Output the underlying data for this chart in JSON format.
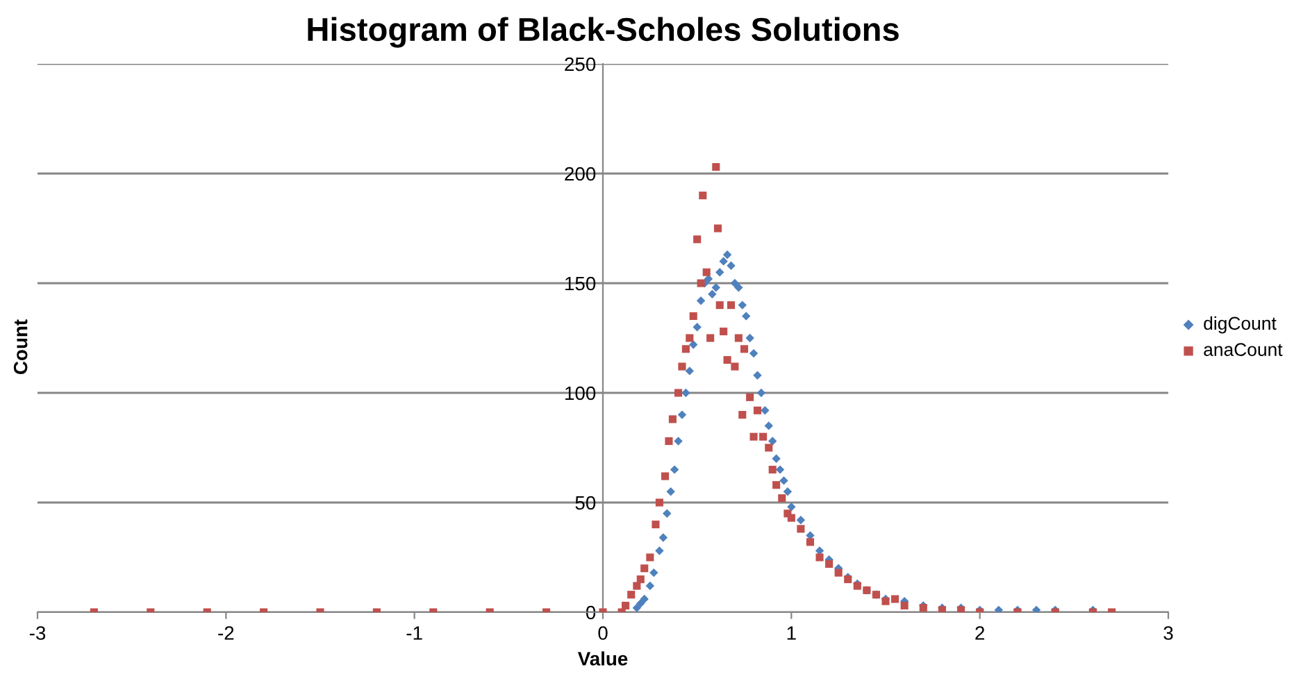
{
  "chart_data": {
    "type": "scatter",
    "title": "Histogram of Black-Scholes Solutions",
    "xlabel": "Value",
    "ylabel": "Count",
    "xlim": [
      -3,
      3
    ],
    "xticks": [
      -3,
      -2,
      -1,
      0,
      1,
      2,
      3
    ],
    "ylim": [
      0,
      250
    ],
    "yticks": [
      0,
      50,
      100,
      150,
      200,
      250
    ],
    "grid": "y",
    "legend": "right",
    "series": [
      {
        "name": "digCount",
        "color": "#4f81bd",
        "marker": "diamond",
        "x": [
          0.18,
          0.2,
          0.22,
          0.25,
          0.27,
          0.3,
          0.32,
          0.34,
          0.36,
          0.38,
          0.4,
          0.42,
          0.44,
          0.46,
          0.48,
          0.5,
          0.52,
          0.54,
          0.56,
          0.58,
          0.6,
          0.62,
          0.64,
          0.66,
          0.68,
          0.7,
          0.72,
          0.74,
          0.76,
          0.78,
          0.8,
          0.82,
          0.84,
          0.86,
          0.88,
          0.9,
          0.92,
          0.94,
          0.96,
          0.98,
          1.0,
          1.05,
          1.1,
          1.15,
          1.2,
          1.25,
          1.3,
          1.35,
          1.4,
          1.45,
          1.5,
          1.6,
          1.7,
          1.8,
          1.9,
          2.0,
          2.1,
          2.2,
          2.3,
          2.4,
          2.6
        ],
        "values": [
          2,
          4,
          6,
          12,
          18,
          28,
          34,
          45,
          55,
          65,
          78,
          90,
          100,
          110,
          122,
          130,
          142,
          150,
          152,
          145,
          148,
          155,
          160,
          163,
          158,
          150,
          148,
          140,
          135,
          125,
          118,
          108,
          100,
          92,
          85,
          78,
          70,
          65,
          60,
          55,
          48,
          42,
          35,
          28,
          24,
          20,
          16,
          13,
          10,
          8,
          6,
          5,
          3,
          2,
          2,
          1,
          1,
          1,
          1,
          1,
          1
        ]
      },
      {
        "name": "anaCount",
        "color": "#c0504d",
        "marker": "square",
        "x": [
          -2.7,
          -2.4,
          -2.1,
          -1.8,
          -1.5,
          -1.2,
          -0.9,
          -0.6,
          -0.3,
          0,
          0.1,
          0.12,
          0.15,
          0.18,
          0.2,
          0.22,
          0.25,
          0.28,
          0.3,
          0.33,
          0.35,
          0.37,
          0.4,
          0.42,
          0.44,
          0.46,
          0.48,
          0.5,
          0.52,
          0.53,
          0.55,
          0.57,
          0.6,
          0.61,
          0.62,
          0.64,
          0.66,
          0.68,
          0.7,
          0.72,
          0.74,
          0.75,
          0.78,
          0.8,
          0.82,
          0.85,
          0.88,
          0.9,
          0.92,
          0.95,
          0.98,
          1.0,
          1.05,
          1.1,
          1.15,
          1.2,
          1.25,
          1.3,
          1.35,
          1.4,
          1.45,
          1.5,
          1.55,
          1.6,
          1.7,
          1.8,
          1.9,
          2.0,
          2.2,
          2.4,
          2.6,
          2.7
        ],
        "values": [
          0,
          0,
          0,
          0,
          0,
          0,
          0,
          0,
          0,
          0,
          0,
          3,
          8,
          12,
          15,
          20,
          25,
          40,
          50,
          62,
          78,
          88,
          100,
          112,
          120,
          125,
          135,
          170,
          150,
          190,
          155,
          125,
          203,
          175,
          140,
          128,
          115,
          140,
          112,
          125,
          90,
          120,
          98,
          80,
          92,
          80,
          75,
          65,
          58,
          52,
          45,
          43,
          38,
          32,
          25,
          22,
          18,
          15,
          12,
          10,
          8,
          5,
          6,
          3,
          2,
          1,
          1,
          0,
          0,
          0,
          0,
          0
        ]
      }
    ]
  }
}
